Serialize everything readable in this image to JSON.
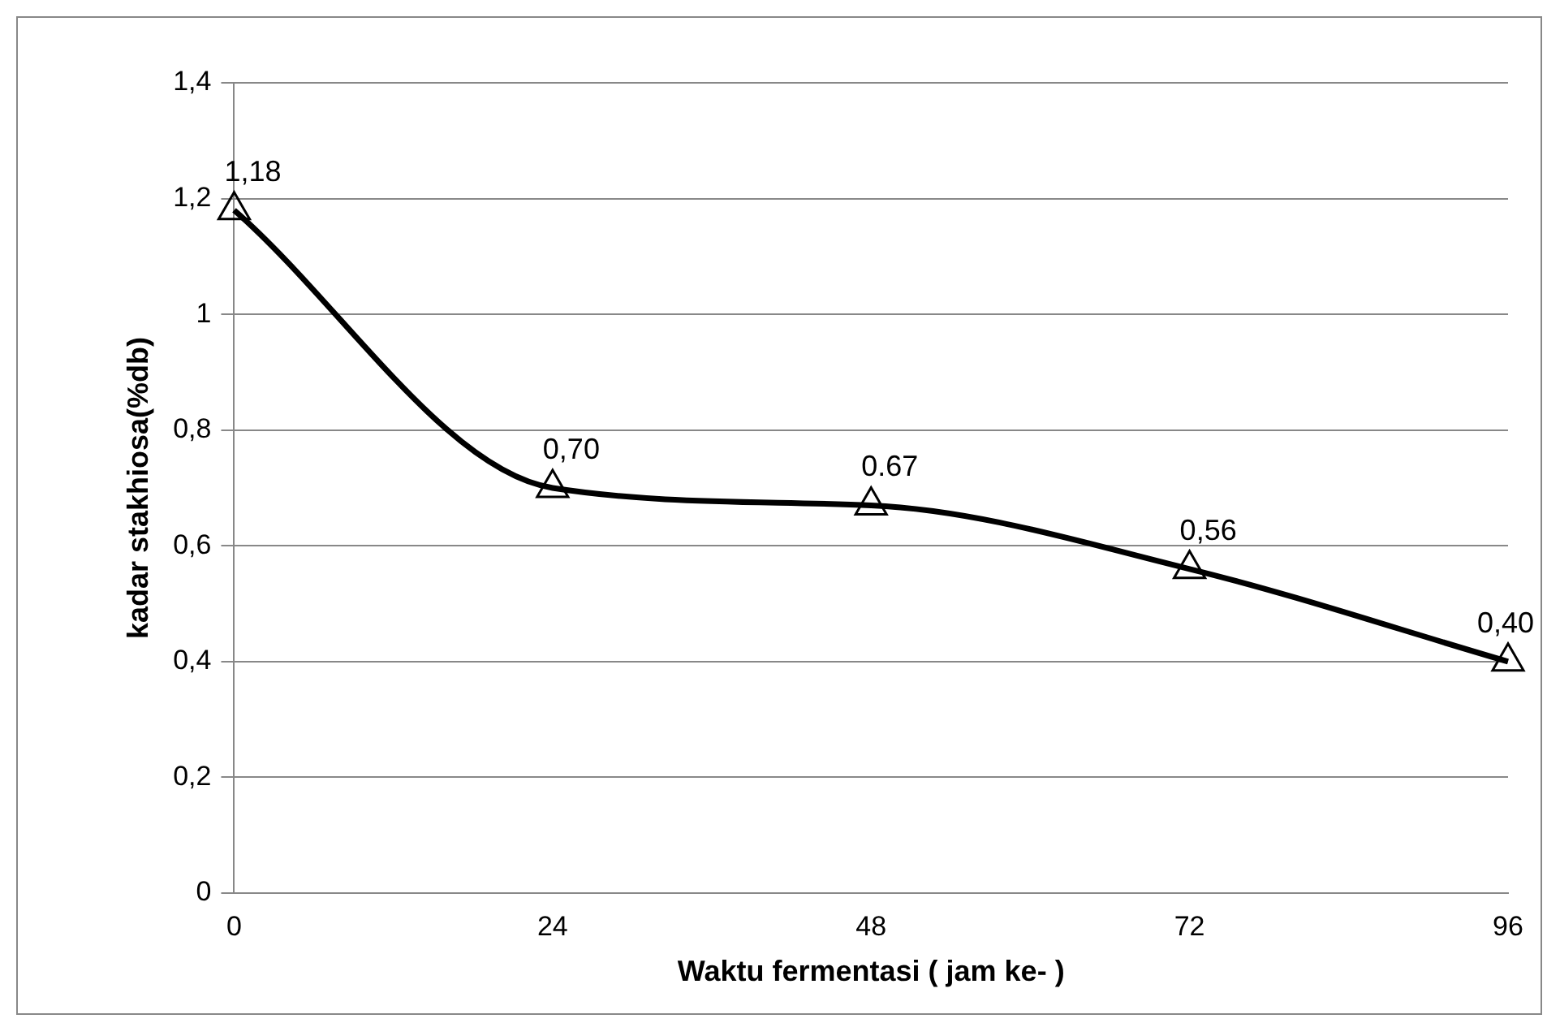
{
  "chart_data": {
    "type": "line",
    "xlabel": "Waktu fermentasi ( jam ke- )",
    "ylabel": "kadar stakhiosa(%db)",
    "x": [
      0,
      24,
      48,
      72,
      96
    ],
    "series": [
      {
        "color": "#000000",
        "values": [
          1.18,
          0.7,
          0.67,
          0.56,
          0.4
        ],
        "value_labels": [
          "1,18",
          "0,70",
          "0.67",
          "0,56",
          "0,40"
        ]
      }
    ],
    "xlim": [
      0,
      96
    ],
    "xticks": [
      0,
      24,
      48,
      72,
      96
    ],
    "ylim": [
      0,
      1.4
    ],
    "yticks": [
      {
        "value": 0,
        "label": "0"
      },
      {
        "value": 0.2,
        "label": "0,2"
      },
      {
        "value": 0.4,
        "label": "0,4"
      },
      {
        "value": 0.6,
        "label": "0,6"
      },
      {
        "value": 0.8,
        "label": "0,8"
      },
      {
        "value": 1,
        "label": "1"
      },
      {
        "value": 1.2,
        "label": "1,2"
      },
      {
        "value": 1.4,
        "label": "1,4"
      }
    ],
    "grid": "y",
    "legend": false,
    "marker": "triangle",
    "line_style": "solid"
  }
}
